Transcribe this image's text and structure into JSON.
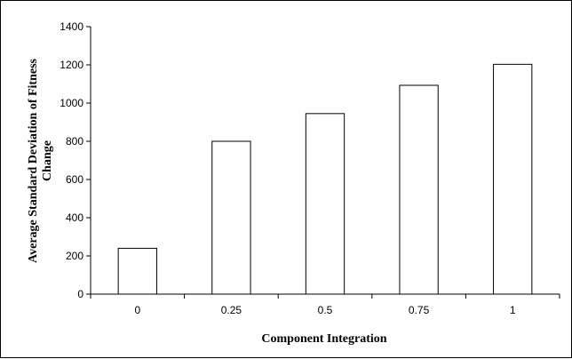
{
  "chart_data": {
    "type": "bar",
    "categories": [
      "0",
      "0.25",
      "0.5",
      "0.75",
      "1"
    ],
    "values": [
      240,
      800,
      945,
      1093,
      1203
    ],
    "xlabel": "Component Integration",
    "ylabel_lines": [
      "Average Standard Deviation of Fitness",
      "Change"
    ],
    "ylim": [
      0,
      1400
    ],
    "yticks": [
      "0",
      "200",
      "400",
      "600",
      "800",
      "1000",
      "1200",
      "1400"
    ],
    "grid": false,
    "legend": "none",
    "bar_fill": "#ffffff",
    "bar_stroke": "#000000"
  }
}
